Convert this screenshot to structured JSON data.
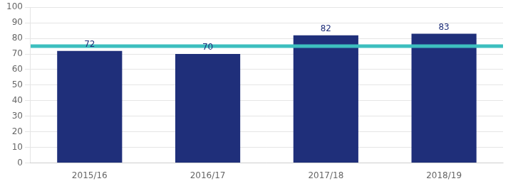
{
  "chart_data": {
    "type": "bar",
    "categories": [
      "2015/16",
      "2016/17",
      "2017/18",
      "2018/19"
    ],
    "values": [
      72,
      70,
      82,
      83
    ],
    "color": "#1F2F7A",
    "target_line": {
      "value": 75,
      "color": "#3DBFBF"
    },
    "data_labels": true,
    "ylim": [
      0,
      100
    ],
    "yticks": [
      0,
      10,
      20,
      30,
      40,
      50,
      60,
      70,
      80,
      90,
      100
    ],
    "grid": true
  }
}
